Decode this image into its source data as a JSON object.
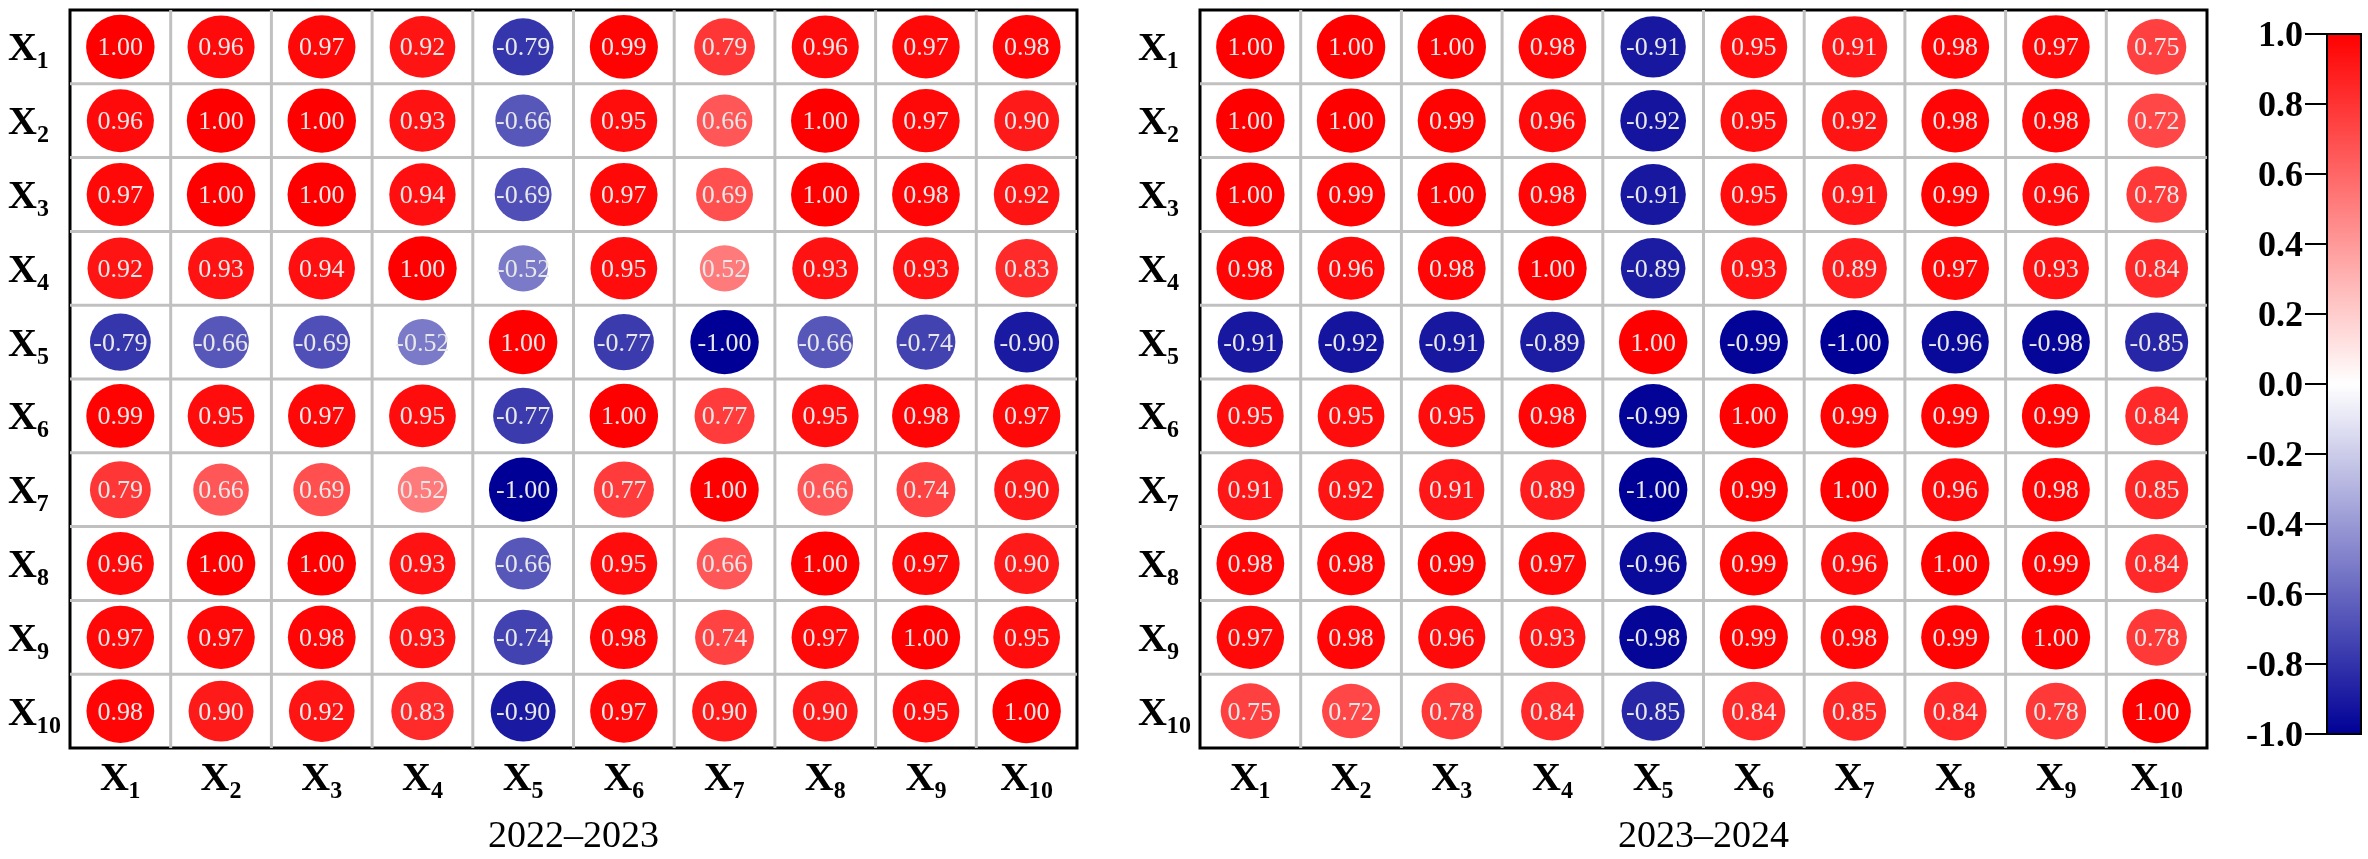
{
  "chart_data": [
    {
      "type": "heatmap",
      "xlabel": "2022–2023",
      "categories": [
        "X₁",
        "X₂",
        "X₃",
        "X₄",
        "X₅",
        "X₆",
        "X₇",
        "X₈",
        "X₉",
        "X₁₀"
      ],
      "y_categories": [
        "X₁",
        "X₂",
        "X₃",
        "X₄",
        "X₅",
        "X₆",
        "X₇",
        "X₈",
        "X₉",
        "X₁₀"
      ],
      "cells": [
        [
          1,
          0.96,
          0.97,
          0.92,
          -0.79,
          0.99,
          0.79,
          0.96,
          0.97,
          0.98
        ],
        [
          0.96,
          1,
          1,
          0.93,
          -0.66,
          0.95,
          0.66,
          1,
          0.97,
          0.9
        ],
        [
          0.97,
          1,
          1,
          0.94,
          -0.69,
          0.97,
          0.69,
          1,
          0.98,
          0.92
        ],
        [
          0.92,
          0.93,
          0.94,
          1,
          -0.52,
          0.95,
          0.52,
          0.93,
          0.93,
          0.83
        ],
        [
          -0.79,
          -0.66,
          -0.69,
          -0.52,
          1,
          -0.77,
          -1,
          -0.66,
          -0.74,
          -0.9
        ],
        [
          0.99,
          0.95,
          0.97,
          0.95,
          -0.77,
          1,
          0.77,
          0.95,
          0.98,
          0.97
        ],
        [
          0.79,
          0.66,
          0.69,
          0.52,
          -1,
          0.77,
          1,
          0.66,
          0.74,
          0.9
        ],
        [
          0.96,
          1,
          1,
          0.93,
          -0.66,
          0.95,
          0.66,
          1,
          0.97,
          0.9
        ],
        [
          0.97,
          0.97,
          0.98,
          0.93,
          -0.74,
          0.98,
          0.74,
          0.97,
          1,
          0.95
        ],
        [
          0.98,
          0.9,
          0.92,
          0.83,
          -0.9,
          0.97,
          0.9,
          0.9,
          0.95,
          1
        ]
      ],
      "cell_labels": [
        [
          "1.00",
          "0.96",
          "0.97",
          "0.92",
          "-0.79",
          "0.99",
          "0.79",
          "0.96",
          "0.97",
          "0.98"
        ],
        [
          "0.96",
          "1.00",
          "1.00",
          "0.93",
          "-0.66",
          "0.95",
          "0.66",
          "1.00",
          "0.97",
          "0.90"
        ],
        [
          "0.97",
          "1.00",
          "1.00",
          "0.94",
          "-0.69",
          "0.97",
          "0.69",
          "1.00",
          "0.98",
          "0.92"
        ],
        [
          "0.92",
          "0.93",
          "0.94",
          "1.00",
          "-0.52",
          "0.95",
          "0.52",
          "0.93",
          "0.93",
          "0.83"
        ],
        [
          "-0.79",
          "-0.66",
          "-0.69",
          "-0.52",
          "1.00",
          "-0.77",
          "-1.00",
          "-0.66",
          "-0.74",
          "-0.90"
        ],
        [
          "0.99",
          "0.95",
          "0.97",
          "0.95",
          "-0.77",
          "1.00",
          "0.77",
          "0.95",
          "0.98",
          "0.97"
        ],
        [
          "0.79",
          "0.66",
          "0.69",
          "0.52",
          "-1.00",
          "0.77",
          "1.00",
          "0.66",
          "0.74",
          "0.90"
        ],
        [
          "0.96",
          "1.00",
          "1.00",
          "0.93",
          "-0.66",
          "0.95",
          "0.66",
          "1.00",
          "0.97",
          "0.90"
        ],
        [
          "0.97",
          "0.97",
          "0.98",
          "0.93",
          "-0.74",
          "0.98",
          "0.74",
          "0.97",
          "1.00",
          "0.95"
        ],
        [
          "0.98",
          "0.90",
          "0.92",
          "0.83",
          "-0.90",
          "0.97",
          "0.90",
          "0.90",
          "0.95",
          "1.00"
        ]
      ],
      "grid": true,
      "data_labels": true
    },
    {
      "type": "heatmap",
      "xlabel": "2023–2024",
      "categories": [
        "X₁",
        "X₂",
        "X₃",
        "X₄",
        "X₅",
        "X₆",
        "X₇",
        "X₈",
        "X₉",
        "X₁₀"
      ],
      "y_categories": [
        "X₁",
        "X₂",
        "X₃",
        "X₄",
        "X₅",
        "X₆",
        "X₇",
        "X₈",
        "X₉",
        "X₁₀"
      ],
      "cells": [
        [
          1,
          1,
          1,
          0.98,
          -0.91,
          0.95,
          0.91,
          0.98,
          0.97,
          0.75
        ],
        [
          1,
          1,
          0.99,
          0.96,
          -0.92,
          0.95,
          0.92,
          0.98,
          0.98,
          0.72
        ],
        [
          1,
          0.99,
          1,
          0.98,
          -0.91,
          0.95,
          0.91,
          0.99,
          0.96,
          0.78
        ],
        [
          0.98,
          0.96,
          0.98,
          1,
          -0.89,
          0.93,
          0.89,
          0.97,
          0.93,
          0.84
        ],
        [
          -0.91,
          -0.92,
          -0.91,
          -0.89,
          1,
          -0.99,
          -1,
          -0.96,
          -0.98,
          -0.85
        ],
        [
          0.95,
          0.95,
          0.95,
          0.98,
          -0.99,
          1,
          0.99,
          0.99,
          0.99,
          0.84
        ],
        [
          0.91,
          0.92,
          0.91,
          0.89,
          -1,
          0.99,
          1,
          0.96,
          0.98,
          0.85
        ],
        [
          0.98,
          0.98,
          0.99,
          0.97,
          -0.96,
          0.99,
          0.96,
          1,
          0.99,
          0.84
        ],
        [
          0.97,
          0.98,
          0.96,
          0.93,
          -0.98,
          0.99,
          0.98,
          0.99,
          1,
          0.78
        ],
        [
          0.75,
          0.72,
          0.78,
          0.84,
          -0.85,
          0.84,
          0.85,
          0.84,
          0.78,
          1
        ]
      ],
      "cell_labels": [
        [
          "1.00",
          "1.00",
          "1.00",
          "0.98",
          "-0.91",
          "0.95",
          "0.91",
          "0.98",
          "0.97",
          "0.75"
        ],
        [
          "1.00",
          "1.00",
          "0.99",
          "0.96",
          "-0.92",
          "0.95",
          "0.92",
          "0.98",
          "0.98",
          "0.72"
        ],
        [
          "1.00",
          "0.99",
          "1.00",
          "0.98",
          "-0.91",
          "0.95",
          "0.91",
          "0.99",
          "0.96",
          "0.78"
        ],
        [
          "0.98",
          "0.96",
          "0.98",
          "1.00",
          "-0.89",
          "0.93",
          "0.89",
          "0.97",
          "0.93",
          "0.84"
        ],
        [
          "-0.91",
          "-0.92",
          "-0.91",
          "-0.89",
          "1.00",
          "-0.99",
          "-1.00",
          "-0.96",
          "-0.98",
          "-0.85"
        ],
        [
          "0.95",
          "0.95",
          "0.95",
          "0.98",
          "-0.99",
          "1.00",
          "0.99",
          "0.99",
          "0.99",
          "0.84"
        ],
        [
          "0.91",
          "0.92",
          "0.91",
          "0.89",
          "-1.00",
          "0.99",
          "1.00",
          "0.96",
          "0.98",
          "0.85"
        ],
        [
          "0.98",
          "0.98",
          "0.99",
          "0.97",
          "-0.96",
          "0.99",
          "0.96",
          "1.00",
          "0.99",
          "0.84"
        ],
        [
          "0.97",
          "0.98",
          "0.96",
          "0.93",
          "-0.98",
          "0.99",
          "0.98",
          "0.99",
          "1.00",
          "0.78"
        ],
        [
          "0.75",
          "0.72",
          "0.78",
          "0.84",
          "-0.85",
          "0.84",
          "0.85",
          "0.84",
          "0.78",
          "1.00"
        ]
      ],
      "clim": [
        -1,
        1
      ],
      "cticks": [
        {
          "value": 1,
          "label": "1.0"
        },
        {
          "value": 0.8,
          "label": "0.8"
        },
        {
          "value": 0.6,
          "label": "0.6"
        },
        {
          "value": 0.4,
          "label": "0.4"
        },
        {
          "value": 0.2,
          "label": "0.2"
        },
        {
          "value": 0,
          "label": "0.0"
        },
        {
          "value": -0.2,
          "label": "-0.2"
        },
        {
          "value": -0.4,
          "label": "-0.4"
        },
        {
          "value": -0.6,
          "label": "-0.6"
        },
        {
          "value": -0.8,
          "label": "-0.8"
        },
        {
          "value": -1,
          "label": "-1.0"
        }
      ],
      "grid": true,
      "data_labels": true
    }
  ]
}
